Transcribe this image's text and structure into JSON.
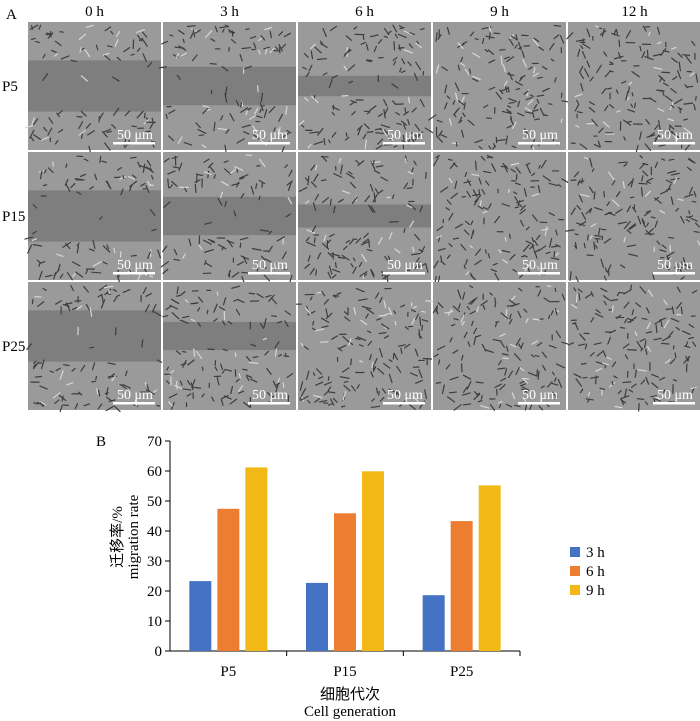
{
  "panel_a": {
    "label": "A",
    "columns": [
      "0 h",
      "3 h",
      "6 h",
      "9 h",
      "12 h"
    ],
    "rows": [
      "P5",
      "P15",
      "P25"
    ],
    "scale_bar_label": "50 μm",
    "scratch_gap_fraction": [
      [
        1.0,
        0.75,
        0.4,
        0.0,
        0.0
      ],
      [
        1.0,
        0.75,
        0.45,
        0.0,
        0.0
      ],
      [
        1.0,
        0.55,
        0.0,
        0.0,
        0.0
      ]
    ]
  },
  "panel_b": {
    "label": "B",
    "ylabel_cn": "迁移率/%",
    "ylabel_en": "migration rate",
    "xlabel_cn": "细胞代次",
    "xlabel_en": "Cell generation"
  },
  "chart_data": {
    "type": "bar",
    "categories": [
      "P5",
      "P15",
      "P25"
    ],
    "series": [
      {
        "name": "3 h",
        "color": "#4472C4",
        "values": [
          23.3,
          22.7,
          18.6
        ]
      },
      {
        "name": "6 h",
        "color": "#ED7D31",
        "values": [
          47.4,
          45.9,
          43.3
        ]
      },
      {
        "name": "9 h",
        "color": "#F2B816",
        "values": [
          61.2,
          59.9,
          55.2
        ]
      }
    ],
    "ylim": [
      0,
      70
    ],
    "yticks": [
      0,
      10,
      20,
      30,
      40,
      50,
      60,
      70
    ],
    "grid": false,
    "legend": "right"
  }
}
